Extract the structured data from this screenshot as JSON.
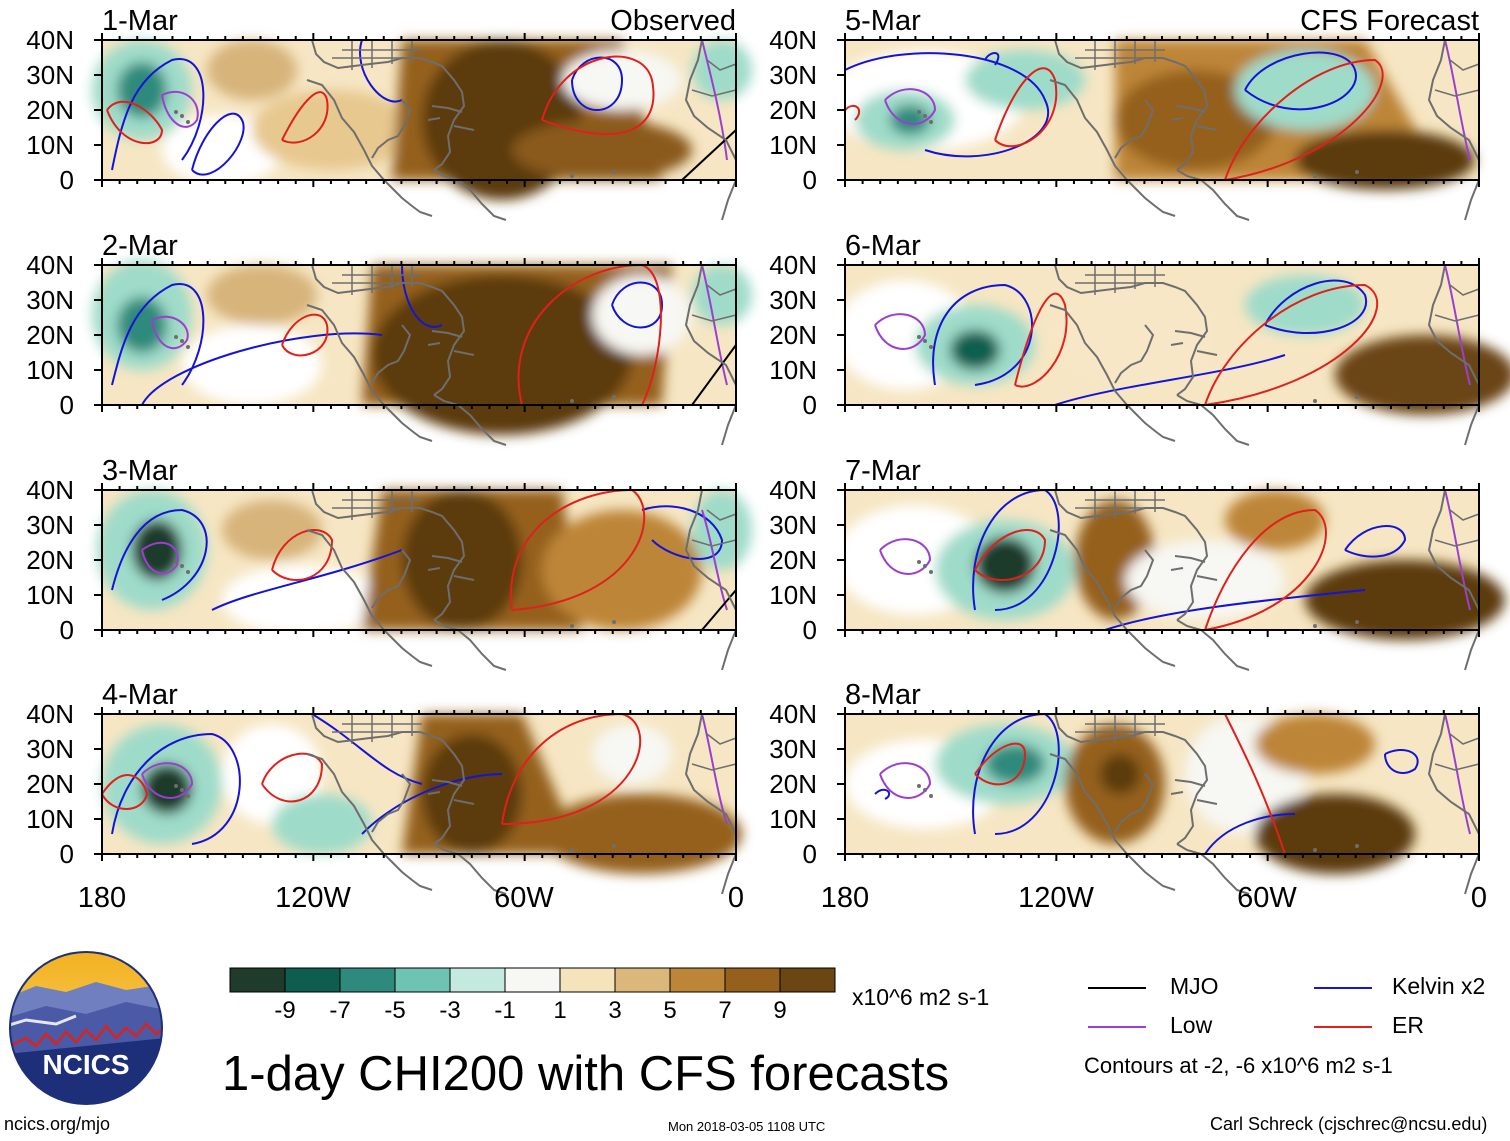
{
  "panels": {
    "left": [
      {
        "date": "1-Mar",
        "tag": "Observed"
      },
      {
        "date": "2-Mar",
        "tag": ""
      },
      {
        "date": "3-Mar",
        "tag": ""
      },
      {
        "date": "4-Mar",
        "tag": ""
      }
    ],
    "right": [
      {
        "date": "5-Mar",
        "tag": "CFS Forecast"
      },
      {
        "date": "6-Mar",
        "tag": ""
      },
      {
        "date": "7-Mar",
        "tag": ""
      },
      {
        "date": "8-Mar",
        "tag": ""
      }
    ]
  },
  "axes": {
    "lat_labels": [
      "40N",
      "30N",
      "20N",
      "10N",
      "0"
    ],
    "lon_labels": [
      "180",
      "120W",
      "60W",
      "0"
    ]
  },
  "colorbar": {
    "labels": [
      "-9",
      "-7",
      "-5",
      "-3",
      "-1",
      "1",
      "3",
      "5",
      "7",
      "9"
    ],
    "colors": [
      "#1f3b2c",
      "#0d5e4f",
      "#2e8a7c",
      "#6fc3b2",
      "#c4e9df",
      "#f7f7f3",
      "#f5e3bb",
      "#dbb77b",
      "#bd8538",
      "#94601c",
      "#6b4512"
    ],
    "units": "x10^6 m2 s-1"
  },
  "legend": {
    "mjo": {
      "label": "MJO",
      "color": "#000000"
    },
    "kelvin": {
      "label": "Kelvin x2",
      "color": "#1414d6"
    },
    "low": {
      "label": "Low",
      "color": "#9b3fd1"
    },
    "er": {
      "label": "ER",
      "color": "#e0201c"
    },
    "note": "Contours at -2, -6 x10^6 m2 s-1"
  },
  "title": "1-day CHI200 with CFS forecasts",
  "footer": {
    "website": "ncics.org/mjo",
    "timestamp": "Mon 2018-03-05 1108 UTC",
    "author": "Carl Schreck (cjschrec@ncsu.edu)"
  },
  "logo": {
    "text": "NCICS"
  }
}
